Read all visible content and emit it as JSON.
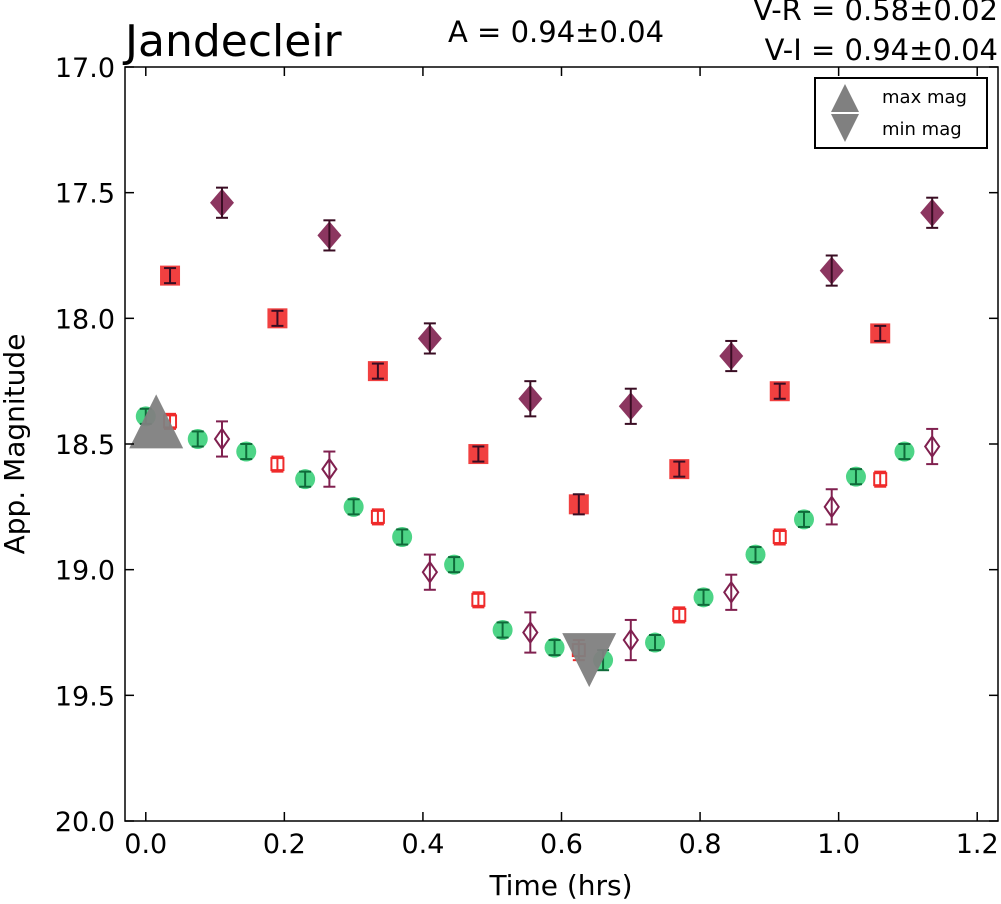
{
  "chart_data": {
    "type": "scatter",
    "title": "Jandecleir",
    "annotations": {
      "amplitude": "A  = 0.94±0.04",
      "v_minus_r": "V-R = 0.58±0.02",
      "v_minus_i": "V-I  = 0.94±0.04"
    },
    "xlabel": "Time (hrs)",
    "ylabel": "App. Magnitude",
    "xlim": [
      -0.03,
      1.23
    ],
    "ylim": [
      20.0,
      17.0
    ],
    "y_inverted": true,
    "xticks": [
      "0.0",
      "0.2",
      "0.4",
      "0.6",
      "0.8",
      "1.0",
      "1.2"
    ],
    "yticks": [
      "17.0",
      "17.5",
      "18.0",
      "18.5",
      "19.0",
      "19.5",
      "20.0"
    ],
    "grid": false,
    "legend_placement": "top-right",
    "legend": [
      {
        "label": "max mag",
        "marker": "triangle-up",
        "color": "#808080"
      },
      {
        "label": "min mag",
        "marker": "triangle-down",
        "color": "#808080"
      }
    ],
    "extrema": {
      "max_mag": {
        "x": 0.015,
        "y": 18.41
      },
      "min_mag": {
        "x": 0.64,
        "y": 19.36
      }
    },
    "series": [
      {
        "marker": "circle",
        "color": "#2ecc71",
        "filled": true,
        "points": [
          {
            "x": 0.0,
            "y": 18.39,
            "err": 0.03
          },
          {
            "x": 0.075,
            "y": 18.48,
            "err": 0.03
          },
          {
            "x": 0.145,
            "y": 18.53,
            "err": 0.03
          },
          {
            "x": 0.23,
            "y": 18.64,
            "err": 0.03
          },
          {
            "x": 0.3,
            "y": 18.75,
            "err": 0.03
          },
          {
            "x": 0.37,
            "y": 18.87,
            "err": 0.03
          },
          {
            "x": 0.445,
            "y": 18.98,
            "err": 0.03
          },
          {
            "x": 0.515,
            "y": 19.24,
            "err": 0.03
          },
          {
            "x": 0.59,
            "y": 19.31,
            "err": 0.03
          },
          {
            "x": 0.66,
            "y": 19.36,
            "err": 0.04
          },
          {
            "x": 0.735,
            "y": 19.29,
            "err": 0.03
          },
          {
            "x": 0.805,
            "y": 19.11,
            "err": 0.03
          },
          {
            "x": 0.88,
            "y": 18.94,
            "err": 0.03
          },
          {
            "x": 0.95,
            "y": 18.8,
            "err": 0.03
          },
          {
            "x": 1.025,
            "y": 18.63,
            "err": 0.03
          },
          {
            "x": 1.095,
            "y": 18.53,
            "err": 0.03
          }
        ]
      },
      {
        "marker": "square",
        "color": "#ef2b2b",
        "filled": false,
        "points": [
          {
            "x": 0.035,
            "y": 18.41,
            "err": 0.03
          },
          {
            "x": 0.19,
            "y": 18.58,
            "err": 0.03
          },
          {
            "x": 0.335,
            "y": 18.79,
            "err": 0.03
          },
          {
            "x": 0.48,
            "y": 19.12,
            "err": 0.03
          },
          {
            "x": 0.625,
            "y": 19.32,
            "err": 0.04
          },
          {
            "x": 0.77,
            "y": 19.18,
            "err": 0.03
          },
          {
            "x": 0.915,
            "y": 18.87,
            "err": 0.03
          },
          {
            "x": 1.06,
            "y": 18.64,
            "err": 0.03
          }
        ]
      },
      {
        "marker": "diamond",
        "color": "#80204f",
        "filled": false,
        "points": [
          {
            "x": 0.11,
            "y": 18.48,
            "err": 0.07
          },
          {
            "x": 0.265,
            "y": 18.6,
            "err": 0.07
          },
          {
            "x": 0.41,
            "y": 19.01,
            "err": 0.07
          },
          {
            "x": 0.555,
            "y": 19.25,
            "err": 0.08
          },
          {
            "x": 0.7,
            "y": 19.28,
            "err": 0.08
          },
          {
            "x": 0.845,
            "y": 19.09,
            "err": 0.07
          },
          {
            "x": 0.99,
            "y": 18.75,
            "err": 0.07
          },
          {
            "x": 1.135,
            "y": 18.51,
            "err": 0.07
          }
        ]
      },
      {
        "marker": "square",
        "color": "#ef2b2b",
        "filled": true,
        "points": [
          {
            "x": 0.035,
            "y": 17.83,
            "err": 0.03
          },
          {
            "x": 0.19,
            "y": 18.0,
            "err": 0.03
          },
          {
            "x": 0.335,
            "y": 18.21,
            "err": 0.03
          },
          {
            "x": 0.48,
            "y": 18.54,
            "err": 0.03
          },
          {
            "x": 0.625,
            "y": 18.74,
            "err": 0.04
          },
          {
            "x": 0.77,
            "y": 18.6,
            "err": 0.03
          },
          {
            "x": 0.915,
            "y": 18.29,
            "err": 0.03
          },
          {
            "x": 1.06,
            "y": 18.06,
            "err": 0.03
          }
        ]
      },
      {
        "marker": "diamond",
        "color": "#80204f",
        "filled": true,
        "points": [
          {
            "x": 0.11,
            "y": 17.54,
            "err": 0.06
          },
          {
            "x": 0.265,
            "y": 17.67,
            "err": 0.06
          },
          {
            "x": 0.41,
            "y": 18.08,
            "err": 0.06
          },
          {
            "x": 0.555,
            "y": 18.32,
            "err": 0.07
          },
          {
            "x": 0.7,
            "y": 18.35,
            "err": 0.07
          },
          {
            "x": 0.845,
            "y": 18.15,
            "err": 0.06
          },
          {
            "x": 0.99,
            "y": 17.81,
            "err": 0.06
          },
          {
            "x": 1.135,
            "y": 17.58,
            "err": 0.06
          }
        ]
      }
    ]
  }
}
